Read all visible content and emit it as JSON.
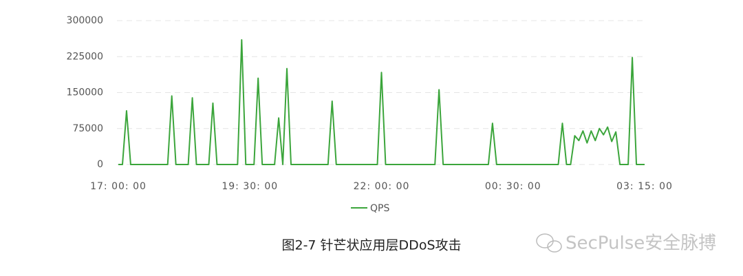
{
  "chart_data": {
    "type": "line",
    "categories": [
      "17: 00: 00",
      null,
      null,
      null,
      null,
      null,
      null,
      null,
      null,
      null,
      null,
      null,
      null,
      null,
      null,
      null,
      null,
      null,
      null,
      null,
      null,
      null,
      null,
      null,
      null,
      null,
      null,
      null,
      null,
      null,
      null,
      null,
      "19: 30: 00",
      null,
      null,
      null,
      null,
      null,
      null,
      null,
      null,
      null,
      null,
      null,
      null,
      null,
      null,
      null,
      null,
      null,
      null,
      null,
      null,
      null,
      null,
      null,
      null,
      null,
      null,
      null,
      null,
      null,
      null,
      null,
      "22: 00: 00",
      null,
      null,
      null,
      null,
      null,
      null,
      null,
      null,
      null,
      null,
      null,
      null,
      null,
      null,
      null,
      null,
      null,
      null,
      null,
      null,
      null,
      null,
      null,
      null,
      null,
      null,
      null,
      null,
      null,
      null,
      null,
      "00: 30: 00",
      null,
      null,
      null,
      null,
      null,
      null,
      null,
      null,
      null,
      null,
      null,
      null,
      null,
      null,
      null,
      null,
      null,
      null,
      null,
      null,
      null,
      null,
      null,
      null,
      null,
      null,
      null,
      null,
      null,
      null,
      null,
      "03: 15: 00"
    ],
    "series": [
      {
        "name": "QPS",
        "color": "#3ba53b",
        "values": [
          0,
          0,
          112000,
          0,
          0,
          0,
          0,
          0,
          0,
          0,
          0,
          0,
          0,
          143000,
          0,
          0,
          0,
          0,
          139000,
          0,
          0,
          0,
          0,
          128000,
          0,
          0,
          0,
          0,
          0,
          0,
          260000,
          0,
          0,
          0,
          180000,
          0,
          0,
          0,
          0,
          97000,
          0,
          200000,
          0,
          0,
          0,
          0,
          0,
          0,
          0,
          0,
          0,
          0,
          132000,
          0,
          0,
          0,
          0,
          0,
          0,
          0,
          0,
          0,
          0,
          0,
          192000,
          0,
          0,
          0,
          0,
          0,
          0,
          0,
          0,
          0,
          0,
          0,
          0,
          0,
          156000,
          0,
          0,
          0,
          0,
          0,
          0,
          0,
          0,
          0,
          0,
          0,
          0,
          86000,
          0,
          0,
          0,
          0,
          0,
          0,
          0,
          0,
          0,
          0,
          0,
          0,
          0,
          0,
          0,
          0,
          86000,
          0,
          0,
          60000,
          50000,
          70000,
          45000,
          70000,
          50000,
          75000,
          62000,
          78000,
          48000,
          68000,
          0,
          0,
          0,
          223000,
          0,
          0,
          0
        ]
      }
    ],
    "ylim": [
      0,
      300000
    ],
    "yticks": [
      0,
      75000,
      150000,
      225000,
      300000
    ],
    "grid": true,
    "legend": "bottom",
    "caption": "图2-7  针芒状应用层DDoS攻击",
    "watermark": "SecPulse安全脉搏"
  }
}
